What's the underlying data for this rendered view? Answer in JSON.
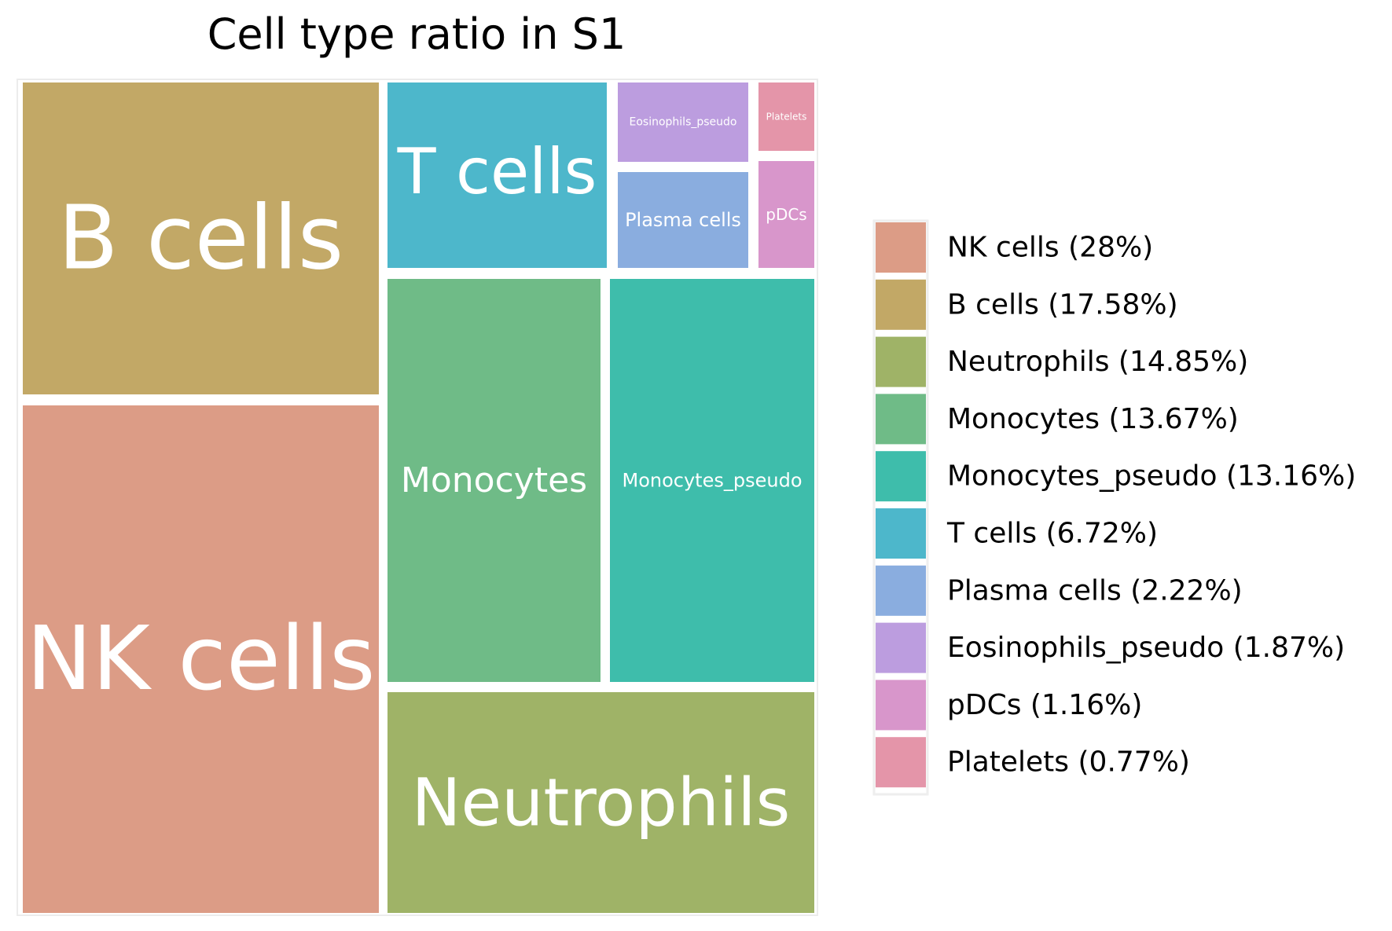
{
  "chart_data": {
    "type": "treemap",
    "title": "Cell type ratio in S1",
    "label_color": "#ffffff",
    "series": [
      {
        "name": "NK cells",
        "label": "NK cells",
        "value": 28,
        "legend_label": "NK cells (28%)",
        "color": "#dc9c86"
      },
      {
        "name": "B cells",
        "label": "B cells",
        "value": 17.58,
        "legend_label": "B cells (17.58%)",
        "color": "#c2a866"
      },
      {
        "name": "Neutrophils",
        "label": "Neutrophils",
        "value": 14.85,
        "legend_label": "Neutrophils (14.85%)",
        "color": "#9fb367"
      },
      {
        "name": "Monocytes",
        "label": "Monocytes",
        "value": 13.67,
        "legend_label": "Monocytes (13.67%)",
        "color": "#6fbb87"
      },
      {
        "name": "Monocytes_pseudo",
        "label": "Monocytes_pseudo",
        "value": 13.16,
        "legend_label": "Monocytes_pseudo (13.16%)",
        "color": "#3ebdab"
      },
      {
        "name": "T cells",
        "label": "T cells",
        "value": 6.72,
        "legend_label": "T cells (6.72%)",
        "color": "#4db7cb"
      },
      {
        "name": "Plasma cells",
        "label": "Plasma cells",
        "value": 2.22,
        "legend_label": "Plasma cells (2.22%)",
        "color": "#8aaddf"
      },
      {
        "name": "Eosinophils_pseudo",
        "label": "Eosinophils_pseudo",
        "value": 1.87,
        "legend_label": "Eosinophils_pseudo (1.87%)",
        "color": "#bc9ddf"
      },
      {
        "name": "pDCs",
        "label": "pDCs",
        "value": 1.16,
        "legend_label": "pDCs (1.16%)",
        "color": "#d896cb"
      },
      {
        "name": "Platelets",
        "label": "Platelets",
        "value": 0.77,
        "legend_label": "Platelets (0.77%)",
        "color": "#e495a9"
      }
    ],
    "legend_position": "right"
  }
}
